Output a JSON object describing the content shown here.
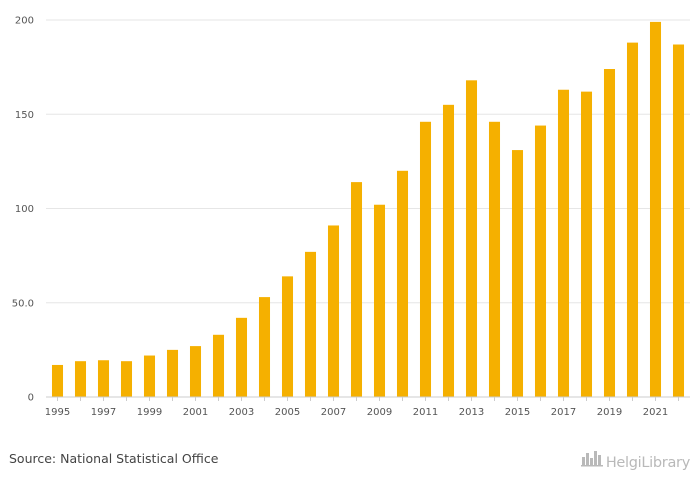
{
  "chart_data": {
    "type": "bar",
    "title": "",
    "xlabel": "",
    "ylabel": "",
    "ylim": [
      0,
      200
    ],
    "yticks": [
      0,
      50,
      100,
      150,
      200
    ],
    "ytick_labels": [
      "0",
      "50.0",
      "100",
      "150",
      "200"
    ],
    "grid": true,
    "bar_color": "#f5b000",
    "categories": [
      "1995",
      "1996",
      "1997",
      "1998",
      "1999",
      "2000",
      "2001",
      "2002",
      "2003",
      "2004",
      "2005",
      "2006",
      "2007",
      "2008",
      "2009",
      "2010",
      "2011",
      "2012",
      "2013",
      "2014",
      "2015",
      "2016",
      "2017",
      "2018",
      "2019",
      "2020",
      "2021",
      "2022"
    ],
    "xtick_labels": [
      "1995",
      "1997",
      "1999",
      "2001",
      "2003",
      "2005",
      "2007",
      "2009",
      "2011",
      "2013",
      "2015",
      "2017",
      "2019",
      "2021"
    ],
    "values": [
      17,
      19,
      19.5,
      19,
      22,
      25,
      27,
      33,
      42,
      53,
      64,
      77,
      91,
      114,
      102,
      120,
      146,
      155,
      168,
      146,
      131,
      144,
      163,
      162,
      174,
      188,
      199,
      187
    ]
  },
  "footer": {
    "source": "Source: National Statistical Office",
    "logo_text": "HelgiLibrary",
    "logo_icon": "city-skyline-icon"
  }
}
